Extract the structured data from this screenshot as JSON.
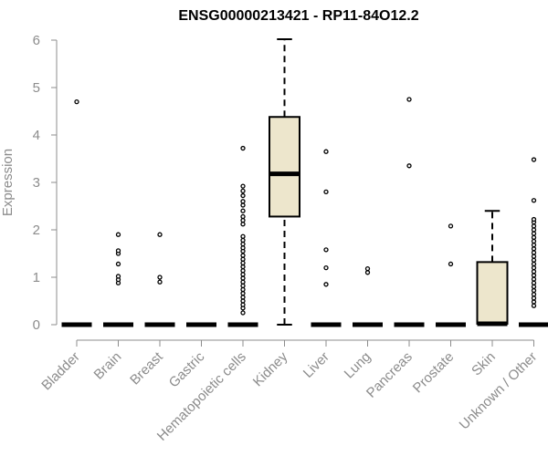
{
  "chart_data": {
    "type": "boxplot",
    "title": "ENSG00000213421 - RP11-84O12.2",
    "xlabel": "",
    "ylabel": "Expression",
    "ylim": [
      0,
      6
    ],
    "yticks": [
      0,
      1,
      2,
      3,
      4,
      5,
      6
    ],
    "grid": false,
    "box_fill": "#ede6cc",
    "categories": [
      "Bladder",
      "Brain",
      "Breast",
      "Gastric",
      "Hematopoietic cells",
      "Kidney",
      "Liver",
      "Lung",
      "Pancreas",
      "Prostate",
      "Skin",
      "Unknown / Other"
    ],
    "boxes": [
      {
        "category": "Bladder",
        "whisker_low": 0,
        "q1": 0,
        "median": 0,
        "q3": 0,
        "whisker_high": 0,
        "outliers": [
          4.7
        ]
      },
      {
        "category": "Brain",
        "whisker_low": 0,
        "q1": 0,
        "median": 0,
        "q3": 0,
        "whisker_high": 0,
        "outliers": [
          0.88,
          0.95,
          1.02,
          1.28,
          1.5,
          1.56,
          1.9
        ]
      },
      {
        "category": "Breast",
        "whisker_low": 0,
        "q1": 0,
        "median": 0,
        "q3": 0,
        "whisker_high": 0,
        "outliers": [
          0.9,
          1.0,
          1.9
        ]
      },
      {
        "category": "Gastric",
        "whisker_low": 0,
        "q1": 0,
        "median": 0,
        "q3": 0,
        "whisker_high": 0,
        "outliers": []
      },
      {
        "category": "Hematopoietic cells",
        "whisker_low": 0,
        "q1": 0,
        "median": 0,
        "q3": 0,
        "whisker_high": 0,
        "outliers": [
          0.25,
          0.35,
          0.42,
          0.5,
          0.58,
          0.66,
          0.74,
          0.82,
          0.9,
          0.98,
          1.06,
          1.14,
          1.22,
          1.3,
          1.38,
          1.46,
          1.55,
          1.62,
          1.7,
          1.78,
          1.86,
          2.12,
          2.2,
          2.28,
          2.4,
          2.52,
          2.6,
          2.72,
          2.82,
          2.92,
          3.72
        ]
      },
      {
        "category": "Kidney",
        "whisker_low": 0,
        "q1": 2.28,
        "median": 3.18,
        "q3": 4.38,
        "whisker_high": 6.02,
        "outliers": []
      },
      {
        "category": "Liver",
        "whisker_low": 0,
        "q1": 0,
        "median": 0,
        "q3": 0,
        "whisker_high": 0,
        "outliers": [
          0.85,
          1.2,
          1.58,
          2.8,
          3.65
        ]
      },
      {
        "category": "Lung",
        "whisker_low": 0,
        "q1": 0,
        "median": 0,
        "q3": 0,
        "whisker_high": 0,
        "outliers": [
          1.1,
          1.18
        ]
      },
      {
        "category": "Pancreas",
        "whisker_low": 0,
        "q1": 0,
        "median": 0,
        "q3": 0,
        "whisker_high": 0,
        "outliers": [
          3.35,
          4.75
        ]
      },
      {
        "category": "Prostate",
        "whisker_low": 0,
        "q1": 0,
        "median": 0,
        "q3": 0,
        "whisker_high": 0,
        "outliers": [
          1.28,
          2.08
        ]
      },
      {
        "category": "Skin",
        "whisker_low": 0,
        "q1": 0.02,
        "median": 0.02,
        "q3": 1.32,
        "whisker_high": 2.4,
        "outliers": []
      },
      {
        "category": "Unknown / Other",
        "whisker_low": 0,
        "q1": 0,
        "median": 0,
        "q3": 0,
        "whisker_high": 0,
        "outliers": [
          0.4,
          0.48,
          0.56,
          0.64,
          0.72,
          0.8,
          0.88,
          0.96,
          1.04,
          1.12,
          1.2,
          1.28,
          1.36,
          1.44,
          1.52,
          1.6,
          1.68,
          1.76,
          1.84,
          1.92,
          2.0,
          2.08,
          2.16,
          2.22,
          2.62,
          3.48
        ]
      }
    ]
  }
}
